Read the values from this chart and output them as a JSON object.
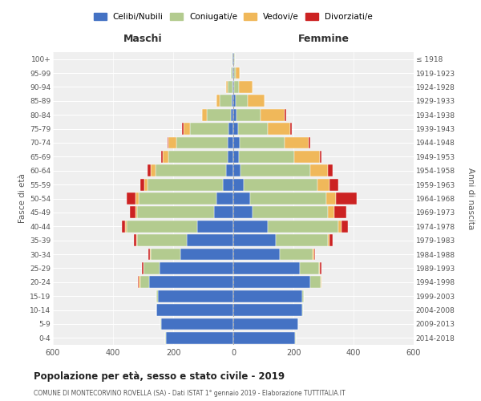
{
  "age_groups": [
    "0-4",
    "5-9",
    "10-14",
    "15-19",
    "20-24",
    "25-29",
    "30-34",
    "35-39",
    "40-44",
    "45-49",
    "50-54",
    "55-59",
    "60-64",
    "65-69",
    "70-74",
    "75-79",
    "80-84",
    "85-89",
    "90-94",
    "95-99",
    "100+"
  ],
  "birth_years": [
    "2014-2018",
    "2009-2013",
    "2004-2008",
    "1999-2003",
    "1994-1998",
    "1989-1993",
    "1984-1988",
    "1979-1983",
    "1974-1978",
    "1969-1973",
    "1964-1968",
    "1959-1963",
    "1954-1958",
    "1949-1953",
    "1944-1948",
    "1939-1943",
    "1934-1938",
    "1929-1933",
    "1924-1928",
    "1919-1923",
    "≤ 1918"
  ],
  "males": {
    "celibi": [
      225,
      240,
      255,
      250,
      280,
      245,
      175,
      155,
      120,
      65,
      55,
      35,
      25,
      20,
      20,
      15,
      8,
      5,
      3,
      2,
      2
    ],
    "coniugati": [
      2,
      2,
      2,
      5,
      30,
      55,
      100,
      165,
      235,
      255,
      260,
      250,
      235,
      195,
      170,
      130,
      80,
      40,
      15,
      5,
      3
    ],
    "vedovi": [
      0,
      0,
      0,
      0,
      5,
      0,
      2,
      2,
      5,
      5,
      10,
      10,
      15,
      20,
      25,
      20,
      15,
      10,
      5,
      0,
      0
    ],
    "divorziati": [
      0,
      0,
      0,
      0,
      2,
      3,
      5,
      8,
      10,
      20,
      30,
      15,
      10,
      5,
      5,
      5,
      2,
      0,
      0,
      0,
      0
    ]
  },
  "females": {
    "nubili": [
      205,
      215,
      230,
      230,
      255,
      220,
      155,
      140,
      115,
      65,
      55,
      35,
      25,
      18,
      20,
      15,
      10,
      8,
      3,
      2,
      2
    ],
    "coniugate": [
      2,
      2,
      2,
      5,
      35,
      65,
      110,
      175,
      235,
      250,
      255,
      245,
      230,
      185,
      150,
      100,
      80,
      40,
      15,
      5,
      2
    ],
    "vedove": [
      0,
      0,
      0,
      0,
      2,
      2,
      3,
      5,
      10,
      20,
      30,
      40,
      60,
      85,
      80,
      75,
      80,
      55,
      45,
      15,
      2
    ],
    "divorziate": [
      0,
      0,
      0,
      0,
      2,
      5,
      5,
      10,
      20,
      40,
      70,
      30,
      15,
      5,
      5,
      5,
      5,
      2,
      0,
      0,
      0
    ]
  },
  "colors": {
    "celibi": "#4472c4",
    "coniugati": "#b3cb8f",
    "vedovi": "#f0b85a",
    "divorziati": "#cc2222"
  },
  "xlim": 600,
  "title": "Popolazione per età, sesso e stato civile - 2019",
  "subtitle": "COMUNE DI MONTECORVINO ROVELLA (SA) - Dati ISTAT 1° gennaio 2019 - Elaborazione TUTTITALIA.IT",
  "label_maschi": "Maschi",
  "label_femmine": "Femmine",
  "ylabel_left": "Fasce di età",
  "ylabel_right": "Anni di nascita",
  "legend_labels": [
    "Celibi/Nubili",
    "Coniugati/e",
    "Vedovi/e",
    "Divorziati/e"
  ],
  "bg_color": "#ffffff",
  "plot_bg_color": "#efefef",
  "grid_color": "#ffffff",
  "bar_height": 0.85
}
